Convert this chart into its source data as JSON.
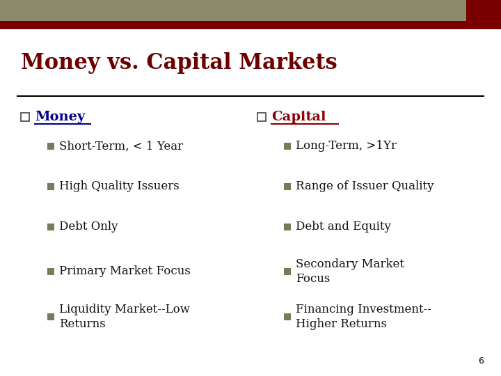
{
  "title": "Money vs. Capital Markets",
  "title_fontsize": 22,
  "title_color": "#6B0000",
  "background_color": "#ffffff",
  "header_bar_color1": "#8B8B6B",
  "header_bar_color2": "#7A0000",
  "divider_color": "#000000",
  "left_header": "Money",
  "right_header": "Capital",
  "left_header_color": "#00008B",
  "right_header_color": "#8B0000",
  "header_fontsize": 14,
  "left_items": [
    "Short-Term, < 1 Year",
    "High Quality Issuers",
    "Debt Only",
    "Primary Market Focus",
    "Liquidity Market--Low\nReturns"
  ],
  "right_items": [
    "Long-Term, >1Yr",
    "Range of Issuer Quality",
    "Debt and Equity",
    "Secondary Market\nFocus",
    "Financing Investment--\nHigher Returns"
  ],
  "bullet_color": "#7A7A5A",
  "item_fontsize": 12,
  "page_number": "6",
  "page_number_color": "#000000",
  "page_number_fontsize": 9
}
